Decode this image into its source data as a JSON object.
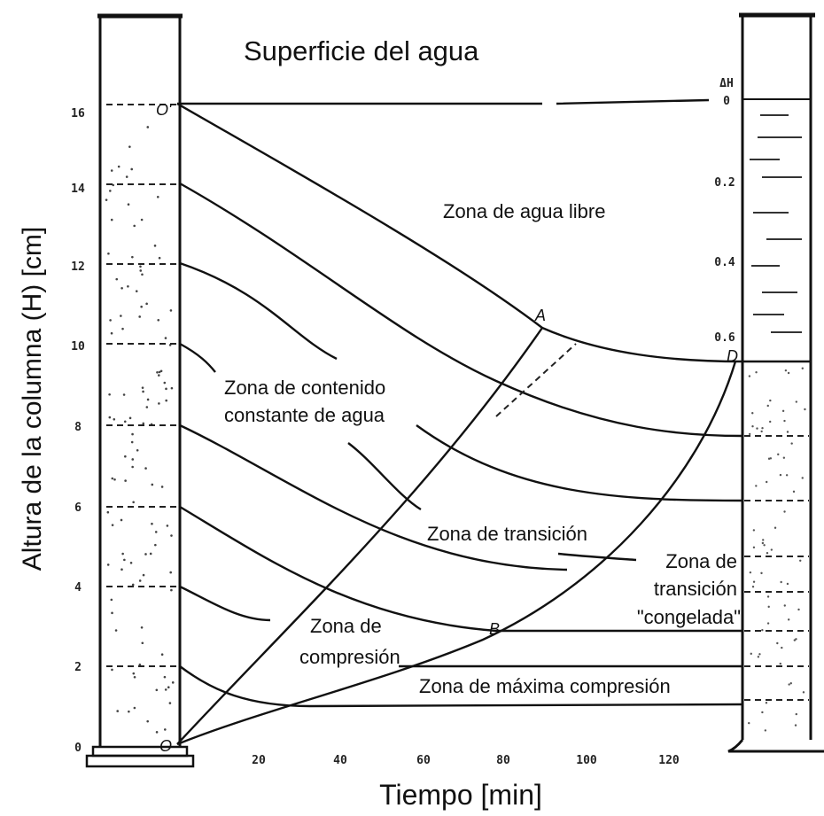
{
  "header": {
    "title": "Superficie del agua"
  },
  "axes": {
    "y_label": "Altura de la columna (H) [cm]",
    "x_label": "Tiempo [min]",
    "y_ticks": [
      0,
      2,
      4,
      6,
      8,
      10,
      12,
      14,
      16
    ],
    "x_ticks": [
      20,
      40,
      60,
      80,
      100,
      120
    ],
    "right_label": "ΔH",
    "right_ticks": [
      0,
      0.2,
      0.4,
      0.6
    ]
  },
  "zones": [
    {
      "lines": [
        "Zona de agua libre"
      ]
    },
    {
      "lines": [
        "Zona de contenido",
        "constante de agua"
      ]
    },
    {
      "lines": [
        "Zona de transición"
      ]
    },
    {
      "lines": [
        "Zona de",
        "transición",
        "\"congelada\""
      ]
    },
    {
      "lines": [
        "Zona de",
        "compresión"
      ]
    },
    {
      "lines": [
        "Zona de máxima compresión"
      ]
    }
  ],
  "points": [
    "O'",
    "O",
    "A",
    "B",
    "D"
  ]
}
